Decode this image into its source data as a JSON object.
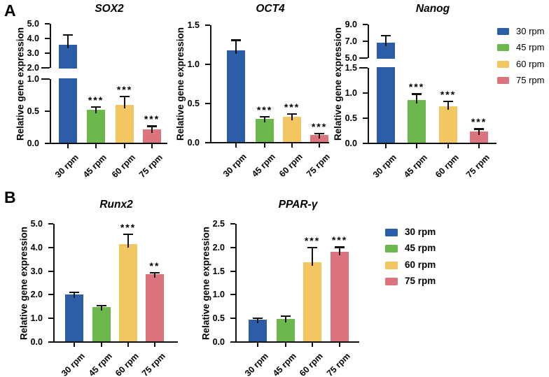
{
  "figure": {
    "panel_a_label": "A",
    "panel_b_label": "B",
    "background_color": "#ffffff",
    "axis_color": "#111111"
  },
  "legend": {
    "position": "right",
    "items": [
      {
        "label": "30 rpm",
        "color": "#2C5EA7"
      },
      {
        "label": "45 rpm",
        "color": "#6DB84C"
      },
      {
        "label": "60 rpm",
        "color": "#F2C660"
      },
      {
        "label": "75 rpm",
        "color": "#DB747C"
      }
    ]
  },
  "chart_data": [
    {
      "panel": "A",
      "type": "bar",
      "title": "SOX2",
      "ylabel": "Relative gene expression",
      "categories": [
        "30 rpm",
        "45 rpm",
        "60 rpm",
        "75 rpm"
      ],
      "values": [
        3.55,
        0.52,
        0.6,
        0.22
      ],
      "errors": [
        0.7,
        0.05,
        0.13,
        0.05
      ],
      "significance": [
        "",
        "***",
        "***",
        "***"
      ],
      "axis_break": true,
      "axis_segments": [
        {
          "range": [
            0,
            1.0
          ],
          "ticks": [
            "0.0",
            "0.5",
            "1.0"
          ]
        },
        {
          "range": [
            2.0,
            5.0
          ],
          "ticks": [
            "2.0",
            "3.0",
            "4.0",
            "5.0"
          ]
        }
      ]
    },
    {
      "panel": "A",
      "type": "bar",
      "title": "OCT4",
      "ylabel": "Relative gene expression",
      "categories": [
        "30 rpm",
        "45 rpm",
        "60 rpm",
        "75 rpm"
      ],
      "values": [
        1.18,
        0.3,
        0.33,
        0.1
      ],
      "errors": [
        0.13,
        0.03,
        0.04,
        0.02
      ],
      "significance": [
        "",
        "***",
        "***",
        "***"
      ],
      "axis_break": false,
      "axis_segments": [
        {
          "range": [
            0,
            1.5
          ],
          "ticks": [
            "0.0",
            "0.5",
            "1.0",
            "1.5"
          ]
        }
      ]
    },
    {
      "panel": "A",
      "type": "bar",
      "title": "Nanog",
      "ylabel": "Relative gene expression",
      "categories": [
        "30 rpm",
        "45 rpm",
        "60 rpm",
        "75 rpm"
      ],
      "values": [
        6.8,
        0.86,
        0.74,
        0.24
      ],
      "errors": [
        0.9,
        0.12,
        0.1,
        0.05
      ],
      "significance": [
        "",
        "***",
        "***",
        "***"
      ],
      "axis_break": true,
      "axis_segments": [
        {
          "range": [
            0,
            1.5
          ],
          "ticks": [
            "0.0",
            "0.5",
            "1.0",
            "1.5"
          ]
        },
        {
          "range": [
            5.0,
            9.0
          ],
          "ticks": [
            "5.0",
            "7.0",
            "9.0"
          ]
        }
      ]
    },
    {
      "panel": "B",
      "type": "bar",
      "title": "Runx2",
      "ylabel": "Relative gene expression",
      "categories": [
        "30 rpm",
        "45 rpm",
        "60 rpm",
        "75 rpm"
      ],
      "values": [
        2.0,
        1.47,
        4.15,
        2.87
      ],
      "errors": [
        0.1,
        0.08,
        0.42,
        0.06
      ],
      "significance": [
        "",
        "",
        "***",
        "**"
      ],
      "axis_break": false,
      "axis_segments": [
        {
          "range": [
            0,
            5.0
          ],
          "ticks": [
            "0.0",
            "1.0",
            "2.0",
            "3.0",
            "4.0",
            "5.0"
          ]
        }
      ]
    },
    {
      "panel": "B",
      "type": "bar",
      "title": "PPAR-γ",
      "ylabel": "Relative gene expression",
      "categories": [
        "30 rpm",
        "45 rpm",
        "60 rpm",
        "75 rpm"
      ],
      "values": [
        0.48,
        0.49,
        1.68,
        1.91
      ],
      "errors": [
        0.03,
        0.06,
        0.32,
        0.1
      ],
      "significance": [
        "",
        "",
        "***",
        "***"
      ],
      "axis_break": false,
      "axis_segments": [
        {
          "range": [
            0,
            2.5
          ],
          "ticks": [
            "0.0",
            "0.5",
            "1.0",
            "1.5",
            "2.0",
            "2.5"
          ]
        }
      ]
    }
  ]
}
